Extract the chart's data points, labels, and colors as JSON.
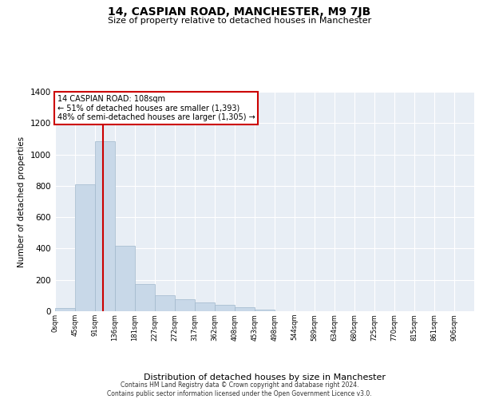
{
  "title": "14, CASPIAN ROAD, MANCHESTER, M9 7JB",
  "subtitle": "Size of property relative to detached houses in Manchester",
  "xlabel": "Distribution of detached houses by size in Manchester",
  "ylabel": "Number of detached properties",
  "bar_color": "#c8d8e8",
  "bar_edge_color": "#a0b8cc",
  "background_color": "#e8eef5",
  "annotation_box_color": "#cc0000",
  "annotation_text": "14 CASPIAN ROAD: 108sqm\n← 51% of detached houses are smaller (1,393)\n48% of semi-detached houses are larger (1,305) →",
  "vline_x": 108,
  "vline_color": "#cc0000",
  "bin_width": 45,
  "bins": [
    0,
    45,
    90,
    135,
    180,
    225,
    270,
    315,
    360,
    405,
    450,
    495,
    540,
    585,
    630,
    675,
    720,
    765,
    810,
    855,
    900,
    945
  ],
  "bar_heights": [
    20,
    810,
    1085,
    420,
    175,
    100,
    75,
    55,
    40,
    25,
    10,
    0,
    0,
    0,
    0,
    0,
    0,
    0,
    0,
    0,
    0
  ],
  "xlim": [
    0,
    945
  ],
  "ylim": [
    0,
    1400
  ],
  "yticks": [
    0,
    200,
    400,
    600,
    800,
    1000,
    1200,
    1400
  ],
  "xtick_labels": [
    "0sqm",
    "45sqm",
    "91sqm",
    "136sqm",
    "181sqm",
    "227sqm",
    "272sqm",
    "317sqm",
    "362sqm",
    "408sqm",
    "453sqm",
    "498sqm",
    "544sqm",
    "589sqm",
    "634sqm",
    "680sqm",
    "725sqm",
    "770sqm",
    "815sqm",
    "861sqm",
    "906sqm"
  ],
  "footer_line1": "Contains HM Land Registry data © Crown copyright and database right 2024.",
  "footer_line2": "Contains public sector information licensed under the Open Government Licence v3.0."
}
